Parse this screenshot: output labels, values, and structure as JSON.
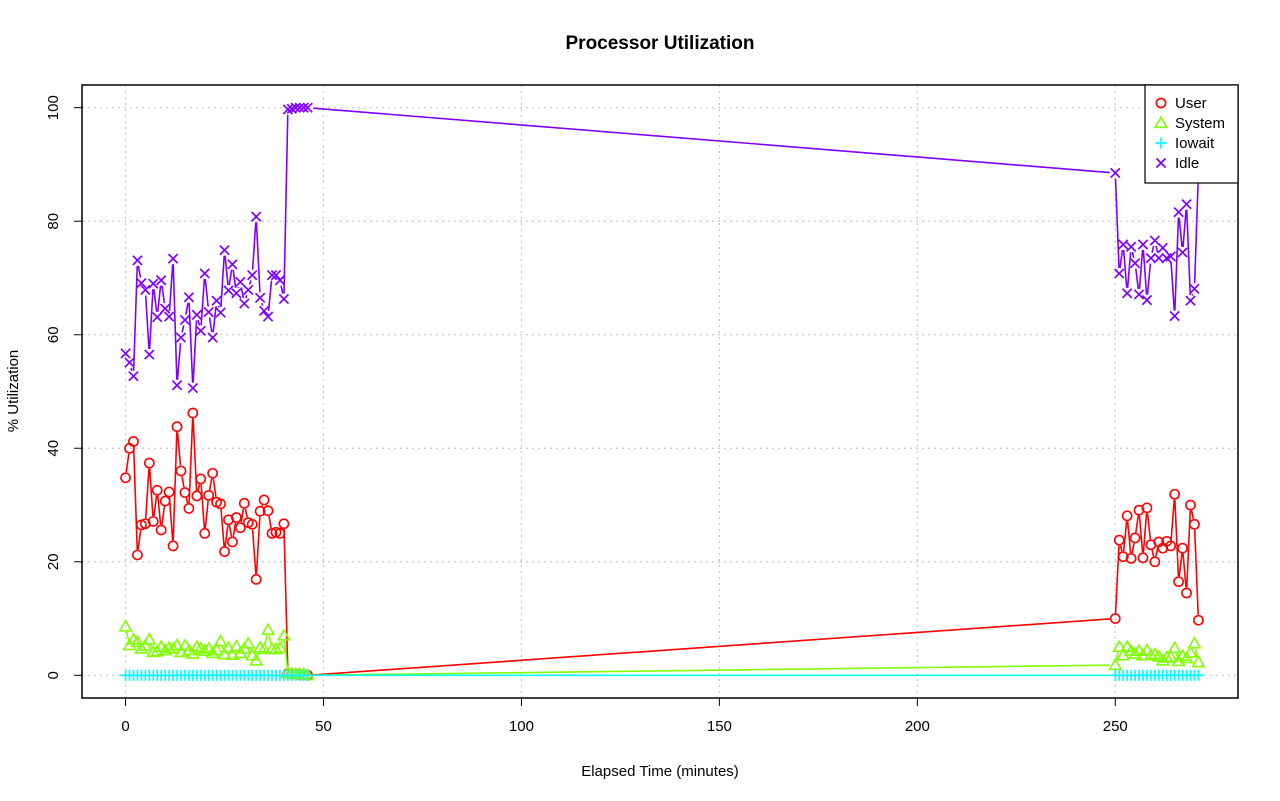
{
  "chart_data": {
    "type": "line",
    "title": "Processor Utilization",
    "xlabel": "Elapsed Time (minutes)",
    "ylabel": "% Utilization",
    "xlim": [
      -11,
      281
    ],
    "ylim": [
      -4,
      104
    ],
    "x_ticks": [
      0,
      50,
      100,
      150,
      200,
      250
    ],
    "y_ticks": [
      0,
      20,
      40,
      60,
      80,
      100
    ],
    "grid": true,
    "legend_position": "top-right",
    "x": [
      0,
      1,
      2,
      3,
      4,
      5,
      6,
      7,
      8,
      9,
      10,
      11,
      12,
      13,
      14,
      15,
      16,
      17,
      18,
      19,
      20,
      21,
      22,
      23,
      24,
      25,
      26,
      27,
      28,
      29,
      30,
      31,
      32,
      33,
      34,
      35,
      36,
      37,
      38,
      39,
      40,
      41,
      42,
      43,
      44,
      45,
      46,
      250,
      251,
      252,
      253,
      254,
      255,
      256,
      257,
      258,
      259,
      260,
      261,
      262,
      263,
      264,
      265,
      266,
      267,
      268,
      269,
      270,
      271
    ],
    "series": [
      {
        "name": "User",
        "color": "#ff0000",
        "marker": "circle",
        "values": [
          34.8,
          40,
          41.2,
          21.2,
          26.5,
          26.7,
          37.4,
          27.1,
          32.6,
          25.6,
          30.7,
          32.3,
          22.8,
          43.8,
          36,
          32.2,
          29.4,
          46.2,
          31.6,
          34.6,
          25,
          31.7,
          35.6,
          30.5,
          30.2,
          21.8,
          27.4,
          23.5,
          27.8,
          26,
          30.3,
          26.9,
          26.6,
          16.9,
          28.9,
          30.9,
          29,
          25,
          25.2,
          25,
          26.7,
          0.3,
          0.2,
          0.2,
          0.1,
          0.1,
          0,
          10,
          23.8,
          20.9,
          28.1,
          20.6,
          24.2,
          29.1,
          20.7,
          29.5,
          23,
          20,
          23.5,
          22.4,
          23.6,
          22.8,
          31.9,
          16.5,
          22.4,
          14.5,
          30,
          26.6,
          9.7
        ]
      },
      {
        "name": "System",
        "color": "#80ff00",
        "marker": "triangle",
        "values": [
          8.6,
          5.3,
          6.3,
          5.9,
          4.7,
          5.2,
          6.3,
          4.1,
          4.2,
          5,
          4.4,
          4.8,
          4.7,
          5.3,
          4.1,
          5.2,
          4.4,
          3.8,
          5,
          4.7,
          4.3,
          4.7,
          3.9,
          4.4,
          6,
          3.7,
          4.8,
          3.6,
          5.1,
          3.9,
          4.7,
          5.6,
          3.5,
          2.6,
          4.9,
          4.6,
          8,
          4.6,
          4.6,
          4.8,
          7,
          0.4,
          0.3,
          0.2,
          0.2,
          0.2,
          0,
          1.8,
          5,
          3.5,
          5,
          4.3,
          3.8,
          4.3,
          3.5,
          4.4,
          3.5,
          3.7,
          3.3,
          2.6,
          3.1,
          3.2,
          4.8,
          2.5,
          3.4,
          3,
          4,
          5.6,
          2.3
        ]
      },
      {
        "name": "Iowait",
        "color": "#00ffff",
        "marker": "plus",
        "values": [
          0,
          0,
          0,
          0,
          0,
          0,
          0,
          0,
          0,
          0,
          0,
          0,
          0,
          0,
          0,
          0,
          0,
          0,
          0,
          0,
          0,
          0,
          0,
          0,
          0,
          0,
          0,
          0,
          0,
          0,
          0,
          0,
          0,
          0,
          0,
          0,
          0,
          0,
          0,
          0,
          0,
          0,
          0,
          0,
          0,
          0,
          0,
          0,
          0,
          0,
          0,
          0,
          0,
          0,
          0,
          0,
          0,
          0,
          0,
          0,
          0,
          0,
          0,
          0,
          0,
          0,
          0,
          0,
          0
        ]
      },
      {
        "name": "Idle",
        "color": "#8000ff",
        "marker": "cross",
        "values": [
          56.7,
          55.1,
          52.7,
          73.1,
          69.1,
          67.9,
          56.5,
          69,
          63.1,
          69.6,
          64.6,
          63.2,
          73.4,
          51.1,
          59.5,
          62.6,
          66.6,
          50.6,
          63.5,
          60.7,
          70.8,
          64,
          59.5,
          66,
          63.9,
          74.9,
          67.8,
          72.4,
          67.3,
          69.3,
          65.5,
          67.9,
          70.5,
          80.8,
          66.5,
          64.2,
          63.2,
          70.5,
          70.5,
          69.6,
          66.3,
          99.7,
          99.8,
          100,
          100,
          100,
          100,
          88.5,
          70.8,
          75.9,
          67.3,
          75.5,
          72.6,
          67.1,
          75.9,
          66.1,
          73.5,
          76.6,
          73.5,
          75.3,
          73.5,
          73.8,
          63.3,
          81.6,
          74.5,
          83,
          66,
          68.1,
          88.5
        ]
      }
    ]
  }
}
